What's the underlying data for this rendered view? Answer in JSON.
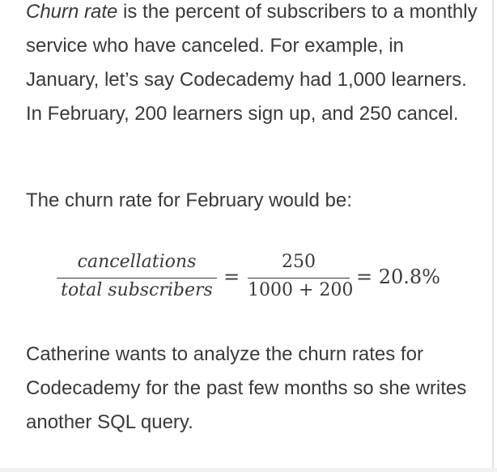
{
  "intro": {
    "term": "Churn rate",
    "definition": " is the percent of subscribers to a monthly service who have canceled. For example, in January, let’s say Codecademy had 1,000 learners. In February, 200 learners sign up, and 250 cancel."
  },
  "lead_in": "The churn rate for February would be:",
  "formula": {
    "fraction_1": {
      "numerator": "cancellations",
      "denominator": "total subscribers"
    },
    "equals_1": "=",
    "fraction_2": {
      "numerator": "250",
      "denominator": "1000 + 200"
    },
    "result": "= 20.8%"
  },
  "outro": "Catherine wants to analyze the churn rates for Codecademy for the past few months so she writes another SQL query."
}
